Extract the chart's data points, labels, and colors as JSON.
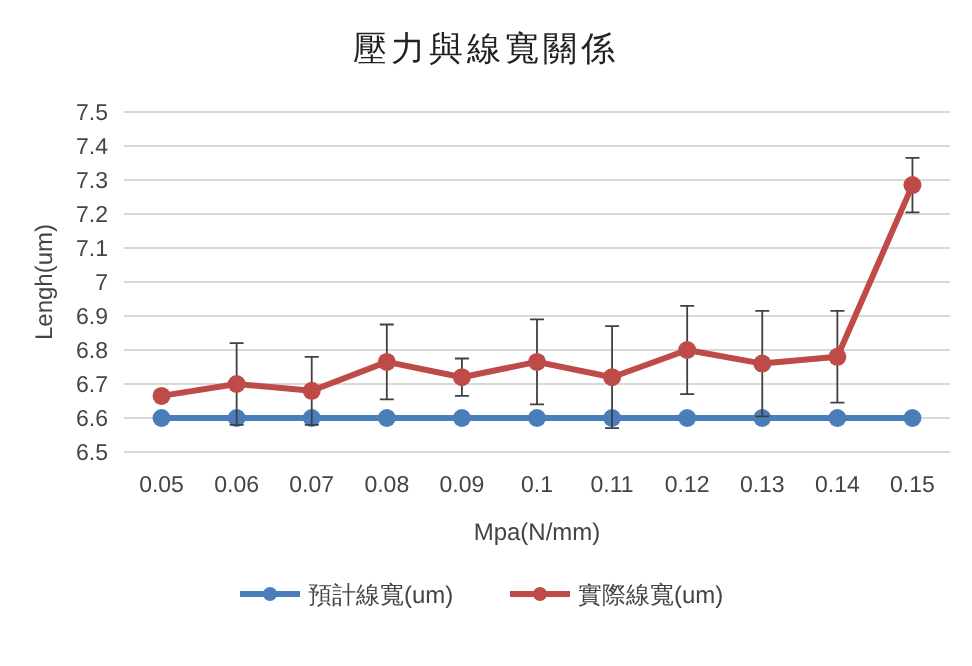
{
  "chart_data": {
    "type": "line",
    "title": "壓力與線寬關係",
    "xlabel": "Mpa(N/mm)",
    "ylabel": "Lengh(um)",
    "categories": [
      "0.05",
      "0.06",
      "0.07",
      "0.08",
      "0.09",
      "0.1",
      "0.11",
      "0.12",
      "0.13",
      "0.14",
      "0.15"
    ],
    "series": [
      {
        "name": "預計線寬(um)",
        "color": "#4a7ebb",
        "values": [
          6.6,
          6.6,
          6.6,
          6.6,
          6.6,
          6.6,
          6.6,
          6.6,
          6.6,
          6.6,
          6.6
        ]
      },
      {
        "name": "實際線寬(um)",
        "color": "#be4b48",
        "values": [
          6.665,
          6.7,
          6.68,
          6.765,
          6.72,
          6.765,
          6.72,
          6.8,
          6.76,
          6.78,
          7.285
        ],
        "errors": [
          null,
          0.12,
          0.1,
          0.11,
          0.055,
          0.125,
          0.15,
          0.13,
          0.155,
          0.135,
          0.08
        ]
      }
    ],
    "ylim": [
      6.5,
      7.5
    ],
    "yticks": [
      6.5,
      6.6,
      6.7,
      6.8,
      6.9,
      7,
      7.1,
      7.2,
      7.3,
      7.4,
      7.5
    ],
    "grid": "y",
    "legend": "bottom",
    "marker": "circle",
    "line_style": "solid"
  }
}
